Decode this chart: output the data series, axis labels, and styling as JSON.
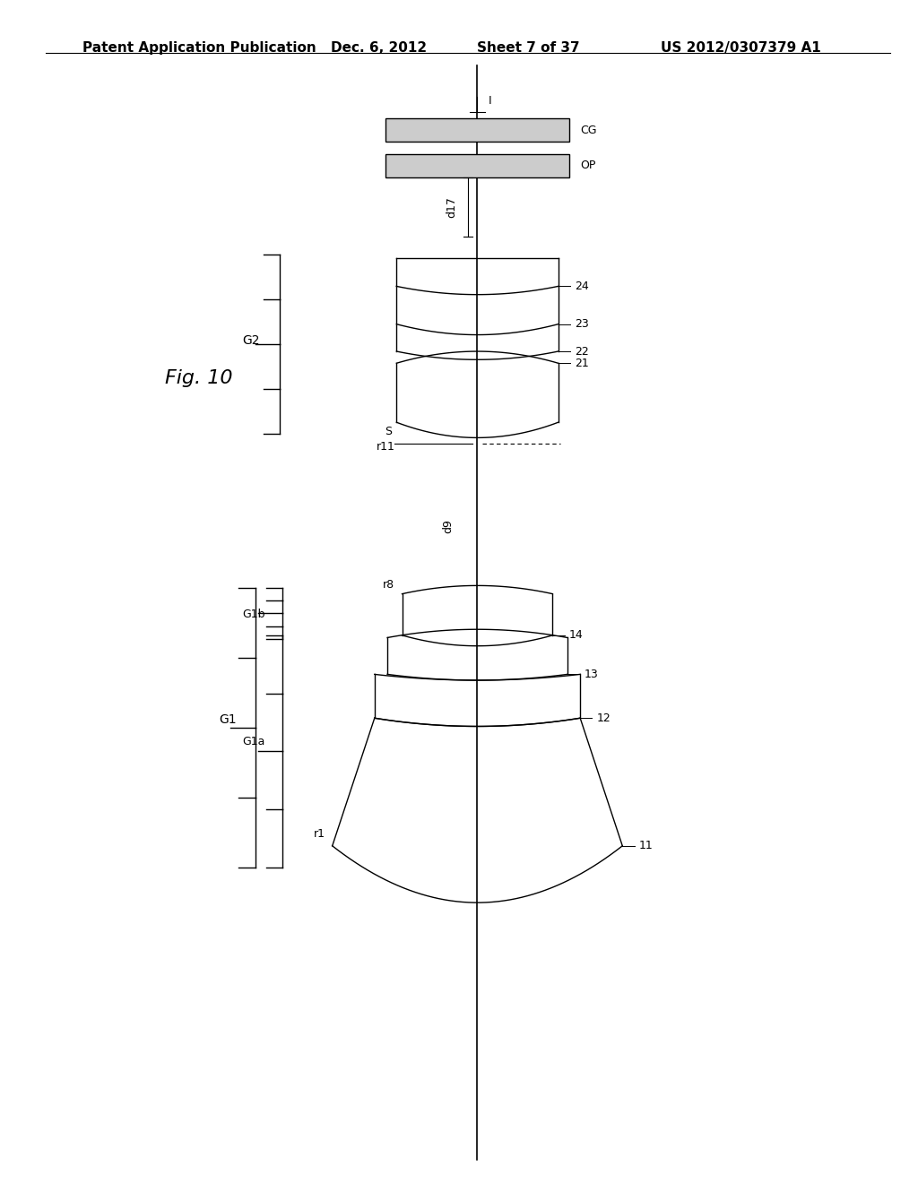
{
  "title_left": "Patent Application Publication",
  "title_date": "Dec. 6, 2012",
  "title_sheet": "Sheet 7 of 37",
  "title_patent": "US 2012/0307379 A1",
  "fig_label": "Fig. 10",
  "bg_color": "#ffffff",
  "font_size_header": 11,
  "font_size_label": 9,
  "font_size_fig": 16
}
